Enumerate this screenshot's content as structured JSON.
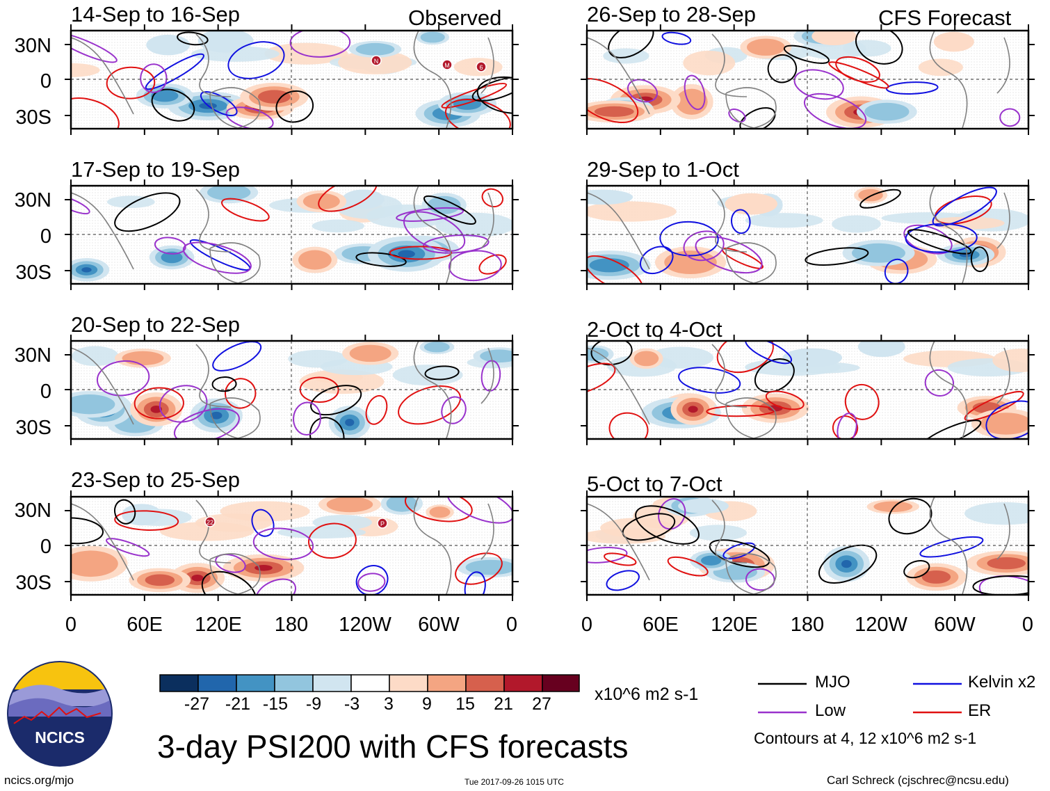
{
  "figure": {
    "title": "3-day PSI200 with CFS forecasts",
    "website": "ncics.org/mjo",
    "timestamp": "Tue 2017-09-26 1015 UTC",
    "author": "Carl Schreck (cjschrec@ncsu.edu)",
    "logo_text": "NCICS"
  },
  "columns": {
    "observed_label": "Observed",
    "forecast_label": "CFS Forecast"
  },
  "axes": {
    "lat_labels": [
      "30N",
      "0",
      "30S"
    ],
    "lon_labels": [
      "0",
      "60E",
      "120E",
      "180",
      "120W",
      "60W",
      "0"
    ]
  },
  "panels": [
    {
      "period": "14-Sep to 16-Sep",
      "source": "Observed"
    },
    {
      "period": "17-Sep to 19-Sep",
      "source": "Observed"
    },
    {
      "period": "20-Sep to 22-Sep",
      "source": "Observed"
    },
    {
      "period": "23-Sep to 25-Sep",
      "source": "Observed"
    },
    {
      "period": "26-Sep to 28-Sep",
      "source": "CFS Forecast"
    },
    {
      "period": "29-Sep to 1-Oct",
      "source": "CFS Forecast"
    },
    {
      "period": "2-Oct to 4-Oct",
      "source": "CFS Forecast"
    },
    {
      "period": "5-Oct to 7-Oct",
      "source": "CFS Forecast"
    }
  ],
  "colorbar": {
    "labels": [
      "-27",
      "-21",
      "-15",
      "-9",
      "-3",
      "3",
      "9",
      "15",
      "21",
      "27"
    ],
    "units": "x10^6 m2 s-1",
    "colors": [
      "#0b2f5e",
      "#2166ac",
      "#4393c3",
      "#92c5de",
      "#d1e5f0",
      "#ffffff",
      "#fddbc7",
      "#f4a582",
      "#d6604d",
      "#b2182b",
      "#67001f"
    ]
  },
  "legend": {
    "items": [
      {
        "label": "MJO",
        "color": "#000000"
      },
      {
        "label": "Kelvin x2",
        "color": "#1010e0"
      },
      {
        "label": "Low",
        "color": "#9932cc"
      },
      {
        "label": "ER",
        "color": "#e01010"
      }
    ],
    "contours_note": "Contours at 4, 12 x10^6 m2 s-1"
  },
  "storm_markers": [
    {
      "panel": 0,
      "label": "N"
    },
    {
      "panel": 0,
      "label": "M"
    },
    {
      "panel": 0,
      "label": "6"
    },
    {
      "panel": 3,
      "label": "22"
    },
    {
      "panel": 3,
      "label": "P"
    }
  ]
}
